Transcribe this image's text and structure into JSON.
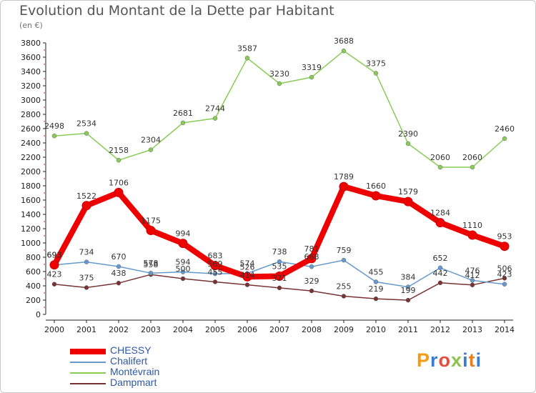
{
  "title": "Evolution du Montant de la Dette par Habitant",
  "subtitle": "(en €)",
  "logo_text": "Proxiti",
  "chart_data": {
    "type": "line",
    "x": [
      "2000",
      "2001",
      "2002",
      "2003",
      "2004",
      "2005",
      "2006",
      "2007",
      "2008",
      "2009",
      "2010",
      "2011",
      "2012",
      "2013",
      "2014"
    ],
    "ylim": [
      0,
      3800
    ],
    "yticks": [
      0,
      200,
      400,
      600,
      800,
      1000,
      1200,
      1400,
      1600,
      1800,
      2000,
      2200,
      2400,
      2600,
      2800,
      3000,
      3200,
      3400,
      3600,
      3800
    ],
    "grid": false,
    "legend_placement": "bottom-left",
    "series": [
      {
        "name": "CHESSY",
        "color": "#ee0000",
        "values": [
          693,
          1522,
          1706,
          1175,
          994,
          683,
          526,
          535,
          781,
          1789,
          1660,
          1579,
          1284,
          1110,
          953
        ]
      },
      {
        "name": "Chalifert",
        "color": "#6699cc",
        "values": [
          693,
          734,
          670,
          578,
          594,
          569,
          574,
          738,
          668,
          759,
          455,
          384,
          652,
          476,
          423
        ]
      },
      {
        "name": "Montévrain",
        "color": "#88cc55",
        "values": [
          2498,
          2534,
          2158,
          2304,
          2681,
          2744,
          3587,
          3230,
          3319,
          3688,
          3375,
          2390,
          2060,
          2060,
          2460
        ]
      },
      {
        "name": "Dampmart",
        "color": "#773333",
        "values": [
          423,
          375,
          438,
          558,
          500,
          455,
          414,
          371,
          329,
          255,
          219,
          199,
          442,
          412,
          506
        ]
      }
    ]
  }
}
